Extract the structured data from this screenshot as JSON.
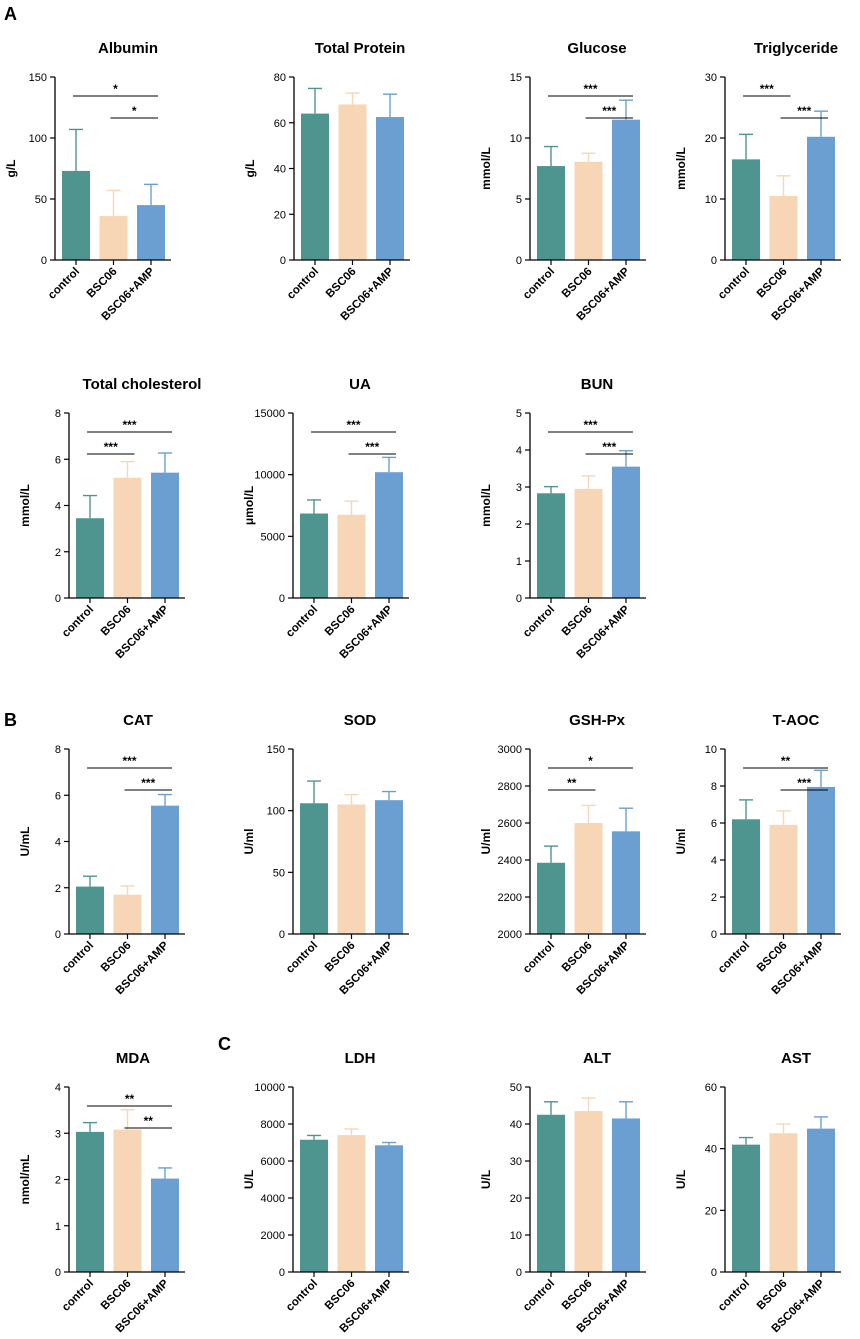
{
  "panels": [
    {
      "label": "A"
    },
    {
      "label": "B"
    },
    {
      "label": "C"
    }
  ],
  "categories": [
    "control",
    "BSC06",
    "BSC06+AMP"
  ],
  "colors": [
    "#4e9590",
    "#f7d6b5",
    "#6b9fd2"
  ],
  "chart_data": [
    {
      "type": "bar",
      "title": "Albumin",
      "ylabel": "g/L",
      "ylim": [
        0,
        150
      ],
      "ticks": [
        0,
        50,
        100,
        150
      ],
      "categories": [
        "control",
        "BSC06",
        "BSC06+AMP"
      ],
      "values": [
        73,
        36,
        45
      ],
      "errors": [
        34,
        21,
        17
      ],
      "significance": [
        {
          "from": 0,
          "to": 2,
          "label": "*"
        },
        {
          "from": 1,
          "to": 2,
          "label": "*"
        }
      ]
    },
    {
      "type": "bar",
      "title": "Total Protein",
      "ylabel": "g/L",
      "ylim": [
        0,
        80
      ],
      "ticks": [
        0,
        20,
        40,
        60,
        80
      ],
      "categories": [
        "control",
        "BSC06",
        "BSC06+AMP"
      ],
      "values": [
        64,
        68,
        62.5
      ],
      "errors": [
        11,
        5,
        10
      ],
      "significance": []
    },
    {
      "type": "bar",
      "title": "Glucose",
      "ylabel": "mmol/L",
      "ylim": [
        0,
        15
      ],
      "ticks": [
        0,
        5,
        10,
        15
      ],
      "categories": [
        "control",
        "BSC06",
        "BSC06+AMP"
      ],
      "values": [
        7.7,
        8.05,
        11.5
      ],
      "errors": [
        1.6,
        0.7,
        1.6
      ],
      "significance": [
        {
          "from": 0,
          "to": 2,
          "label": "***"
        },
        {
          "from": 1,
          "to": 2,
          "label": "***"
        }
      ]
    },
    {
      "type": "bar",
      "title": "Triglyceride",
      "ylabel": "mmol/L",
      "ylim": [
        0,
        30
      ],
      "ticks": [
        0,
        10,
        20,
        30
      ],
      "categories": [
        "control",
        "BSC06",
        "BSC06+AMP"
      ],
      "values": [
        16.5,
        10.5,
        20.2
      ],
      "errors": [
        4.1,
        3.3,
        4.2
      ],
      "significance": [
        {
          "from": 0,
          "to": 1,
          "label": "***"
        },
        {
          "from": 1,
          "to": 2,
          "label": "***"
        }
      ]
    },
    {
      "type": "bar",
      "title": "Total cholesterol",
      "ylabel": "mmol/L",
      "ylim": [
        0,
        8
      ],
      "ticks": [
        0,
        2,
        4,
        6,
        8
      ],
      "categories": [
        "control",
        "BSC06",
        "BSC06+AMP"
      ],
      "values": [
        3.45,
        5.2,
        5.42
      ],
      "errors": [
        0.98,
        0.7,
        0.85
      ],
      "significance": [
        {
          "from": 0,
          "to": 2,
          "label": "***"
        },
        {
          "from": 0,
          "to": 1,
          "label": "***"
        }
      ]
    },
    {
      "type": "bar",
      "title": "UA",
      "ylabel": "μmol/L",
      "ylim": [
        0,
        15000
      ],
      "ticks": [
        0,
        5000,
        10000,
        15000
      ],
      "categories": [
        "control",
        "BSC06",
        "BSC06+AMP"
      ],
      "values": [
        6850,
        6750,
        10200
      ],
      "errors": [
        1100,
        1100,
        1200
      ],
      "significance": [
        {
          "from": 0,
          "to": 2,
          "label": "***"
        },
        {
          "from": 1,
          "to": 2,
          "label": "***"
        }
      ]
    },
    {
      "type": "bar",
      "title": "BUN",
      "ylabel": "mmol/L",
      "ylim": [
        0,
        5
      ],
      "ticks": [
        0,
        1,
        2,
        3,
        4,
        5
      ],
      "categories": [
        "control",
        "BSC06",
        "BSC06+AMP"
      ],
      "values": [
        2.83,
        2.95,
        3.55
      ],
      "errors": [
        0.18,
        0.35,
        0.43
      ],
      "significance": [
        {
          "from": 0,
          "to": 2,
          "label": "***"
        },
        {
          "from": 1,
          "to": 2,
          "label": "***"
        }
      ]
    },
    {
      "type": "bar",
      "title": "CAT",
      "ylabel": "U/mL",
      "ylim": [
        0,
        8
      ],
      "ticks": [
        0,
        2,
        4,
        6,
        8
      ],
      "categories": [
        "control",
        "BSC06",
        "BSC06+AMP"
      ],
      "values": [
        2.05,
        1.7,
        5.55
      ],
      "errors": [
        0.45,
        0.38,
        0.48
      ],
      "significance": [
        {
          "from": 0,
          "to": 2,
          "label": "***"
        },
        {
          "from": 1,
          "to": 2,
          "label": "***"
        }
      ]
    },
    {
      "type": "bar",
      "title": "SOD",
      "ylabel": "U/ml",
      "ylim": [
        0,
        150
      ],
      "ticks": [
        0,
        50,
        100,
        150
      ],
      "categories": [
        "control",
        "BSC06",
        "BSC06+AMP"
      ],
      "values": [
        106,
        105,
        108.5
      ],
      "errors": [
        18,
        8,
        7
      ],
      "significance": []
    },
    {
      "type": "bar",
      "title": "GSH-Px",
      "ylabel": "U/ml",
      "ylim": [
        2000,
        3000
      ],
      "ticks": [
        2000,
        2200,
        2400,
        2600,
        2800,
        3000
      ],
      "categories": [
        "control",
        "BSC06",
        "BSC06+AMP"
      ],
      "values": [
        2385,
        2600,
        2555
      ],
      "errors": [
        90,
        95,
        125
      ],
      "significance": [
        {
          "from": 0,
          "to": 2,
          "label": "*"
        },
        {
          "from": 0,
          "to": 1,
          "label": "**"
        }
      ]
    },
    {
      "type": "bar",
      "title": "T-AOC",
      "ylabel": "U/ml",
      "ylim": [
        0,
        10
      ],
      "ticks": [
        0,
        2,
        4,
        6,
        8,
        10
      ],
      "categories": [
        "control",
        "BSC06",
        "BSC06+AMP"
      ],
      "values": [
        6.2,
        5.9,
        7.95
      ],
      "errors": [
        1.05,
        0.75,
        0.9
      ],
      "significance": [
        {
          "from": 0,
          "to": 2,
          "label": "**"
        },
        {
          "from": 1,
          "to": 2,
          "label": "***"
        }
      ]
    },
    {
      "type": "bar",
      "title": "MDA",
      "ylabel": "nmol/mL",
      "ylim": [
        0,
        4
      ],
      "ticks": [
        0,
        1,
        2,
        3,
        4
      ],
      "categories": [
        "control",
        "BSC06",
        "BSC06+AMP"
      ],
      "values": [
        3.03,
        3.08,
        2.02
      ],
      "errors": [
        0.2,
        0.43,
        0.23
      ],
      "significance": [
        {
          "from": 0,
          "to": 2,
          "label": "**"
        },
        {
          "from": 1,
          "to": 2,
          "label": "**"
        }
      ]
    },
    {
      "type": "bar",
      "title": "LDH",
      "ylabel": "U/L",
      "ylim": [
        0,
        10000
      ],
      "ticks": [
        0,
        2000,
        4000,
        6000,
        8000,
        10000
      ],
      "categories": [
        "control",
        "BSC06",
        "BSC06+AMP"
      ],
      "values": [
        7150,
        7400,
        6850
      ],
      "errors": [
        230,
        330,
        150
      ],
      "significance": []
    },
    {
      "type": "bar",
      "title": "ALT",
      "ylabel": "U/L",
      "ylim": [
        0,
        50
      ],
      "ticks": [
        0,
        10,
        20,
        30,
        40,
        50
      ],
      "categories": [
        "control",
        "BSC06",
        "BSC06+AMP"
      ],
      "values": [
        42.5,
        43.5,
        41.5
      ],
      "errors": [
        3.5,
        3.5,
        4.5
      ],
      "significance": []
    },
    {
      "type": "bar",
      "title": "AST",
      "ylabel": "U/L",
      "ylim": [
        0,
        60
      ],
      "ticks": [
        0,
        20,
        40,
        60
      ],
      "categories": [
        "control",
        "BSC06",
        "BSC06+AMP"
      ],
      "values": [
        41.3,
        45,
        46.5
      ],
      "errors": [
        2.3,
        3,
        3.8
      ],
      "significance": []
    }
  ]
}
